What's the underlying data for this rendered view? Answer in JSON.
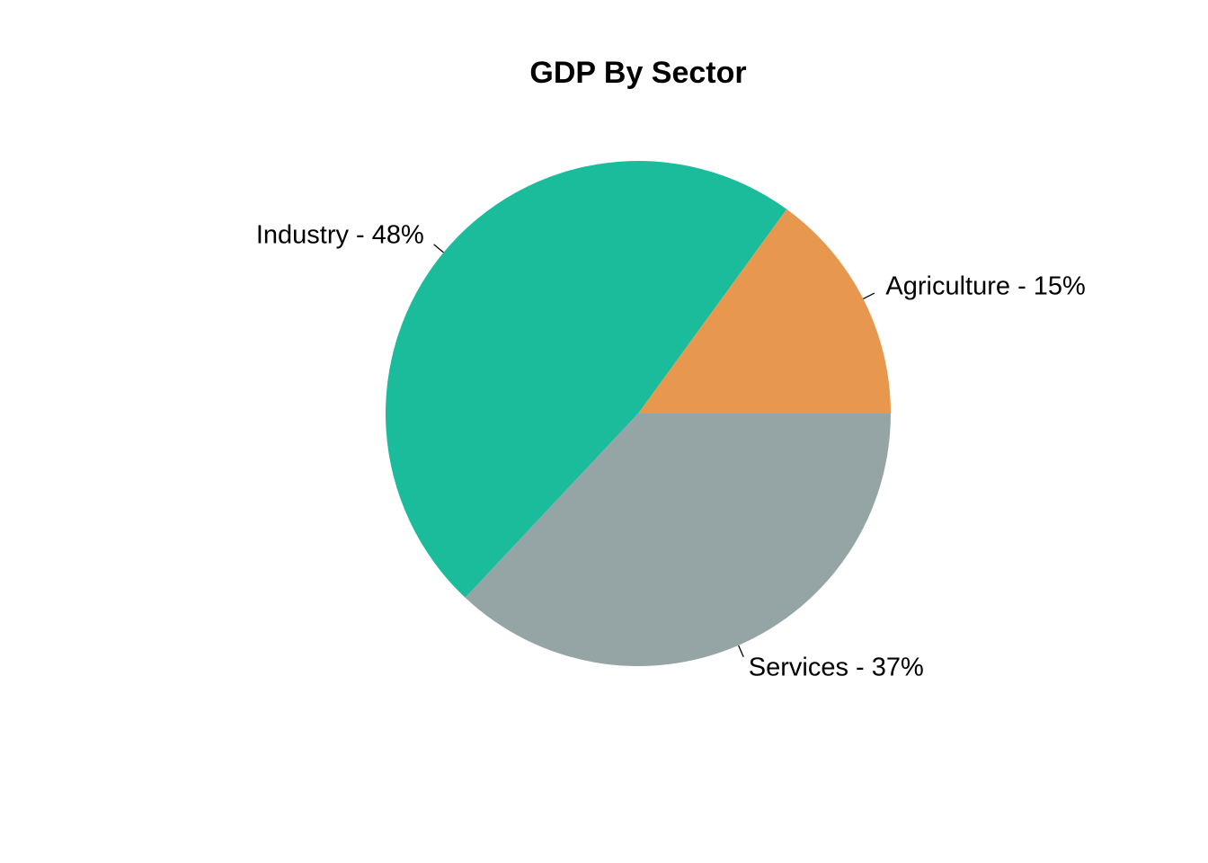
{
  "chart_data": {
    "type": "pie",
    "title": "GDP By Sector",
    "slices": [
      {
        "name": "Agriculture",
        "value": 15,
        "label": "Agriculture - 15%",
        "color": "#E8984E"
      },
      {
        "name": "Industry",
        "value": 48,
        "label": "Industry - 48%",
        "color": "#1ABC9C"
      },
      {
        "name": "Services",
        "value": 37,
        "label": "Services - 37%",
        "color": "#95A5A6"
      }
    ],
    "start_angle": "3 o'clock",
    "direction": "counter-clockwise",
    "legend": "none"
  }
}
